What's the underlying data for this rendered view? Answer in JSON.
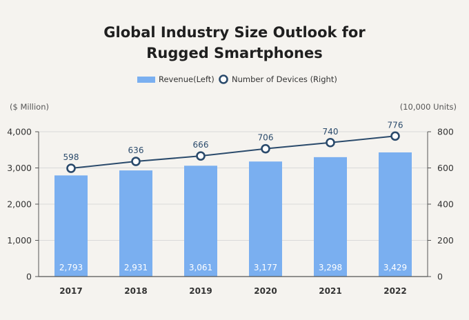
{
  "chart_data": {
    "type": "bar",
    "title_lines": [
      "Global Industry Size Outlook for",
      "Rugged Smartphones"
    ],
    "categories": [
      "2017",
      "2018",
      "2019",
      "2020",
      "2021",
      "2022"
    ],
    "series": [
      {
        "name": "Revenue(Left)",
        "type": "bar",
        "axis": "left",
        "values": [
          2793,
          2931,
          3061,
          3177,
          3298,
          3429
        ]
      },
      {
        "name": "Number of Devices (Right)",
        "type": "line",
        "axis": "right",
        "values": [
          598,
          636,
          666,
          706,
          740,
          776
        ]
      }
    ],
    "ylabel_left": "($ Million)",
    "ylabel_right": "(10,000 Units)",
    "ylim_left": [
      0,
      4000
    ],
    "ylim_right": [
      0,
      800
    ],
    "yticks_left": [
      "0",
      "1,000",
      "2,000",
      "3,000",
      "4,000"
    ],
    "yticks_right": [
      "0",
      "200",
      "400",
      "600",
      "800"
    ],
    "bar_labels": [
      "2,793",
      "2,931",
      "3,061",
      "3,177",
      "3,298",
      "3,429"
    ],
    "line_labels": [
      "598",
      "636",
      "666",
      "706",
      "740",
      "776"
    ],
    "grid": true,
    "legend_position": "top-center",
    "colors": {
      "bar": "#7aaff0",
      "line": "#2a4a6b",
      "marker_fill": "#ffffff",
      "grid": "#d9d9d9",
      "axis": "#555555"
    }
  }
}
